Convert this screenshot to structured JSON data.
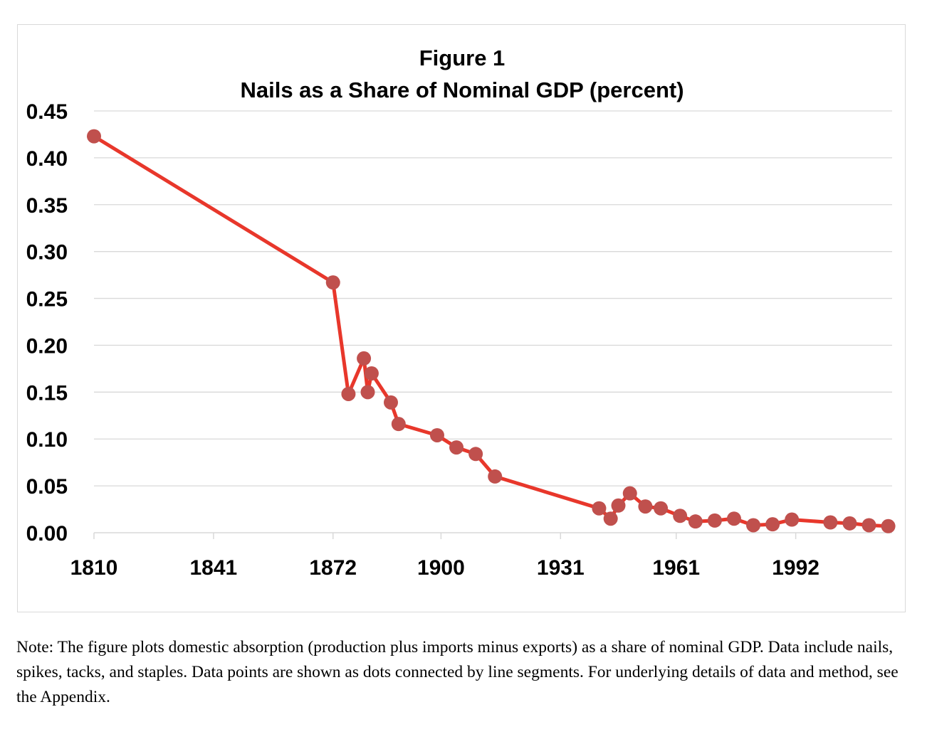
{
  "chart_data": {
    "type": "line",
    "title": "Figure 1",
    "subtitle": "Nails as a Share of Nominal GDP (percent)",
    "xlabel": "",
    "ylabel": "",
    "ylim": [
      0,
      0.45
    ],
    "xlim": [
      1810,
      2017
    ],
    "grid": true,
    "y_ticks": [
      "0.00",
      "0.05",
      "0.10",
      "0.15",
      "0.20",
      "0.25",
      "0.30",
      "0.35",
      "0.40",
      "0.45"
    ],
    "x_ticks": [
      "1810",
      "1841",
      "1872",
      "1900",
      "1931",
      "1961",
      "1992"
    ],
    "line_color": "#e8372b",
    "marker_color": "#c0504d",
    "series": [
      {
        "name": "Nails share of nominal GDP",
        "x": [
          1810,
          1872,
          1876,
          1880,
          1881,
          1882,
          1887,
          1889,
          1899,
          1904,
          1909,
          1914,
          1941,
          1944,
          1946,
          1949,
          1953,
          1957,
          1962,
          1966,
          1971,
          1976,
          1981,
          1986,
          1991,
          2001,
          2006,
          2011,
          2016
        ],
        "values": [
          0.423,
          0.267,
          0.148,
          0.186,
          0.15,
          0.17,
          0.139,
          0.116,
          0.104,
          0.091,
          0.084,
          0.06,
          0.026,
          0.015,
          0.029,
          0.042,
          0.028,
          0.026,
          0.018,
          0.012,
          0.013,
          0.015,
          0.008,
          0.009,
          0.014,
          0.011,
          0.01,
          0.008,
          0.007
        ]
      }
    ]
  },
  "note": "Note: The figure plots domestic absorption (production plus imports minus exports) as a share of nominal GDP. Data include nails, spikes, tacks, and staples. Data points are shown as dots connected by line segments. For underlying details of data and method, see the Appendix."
}
